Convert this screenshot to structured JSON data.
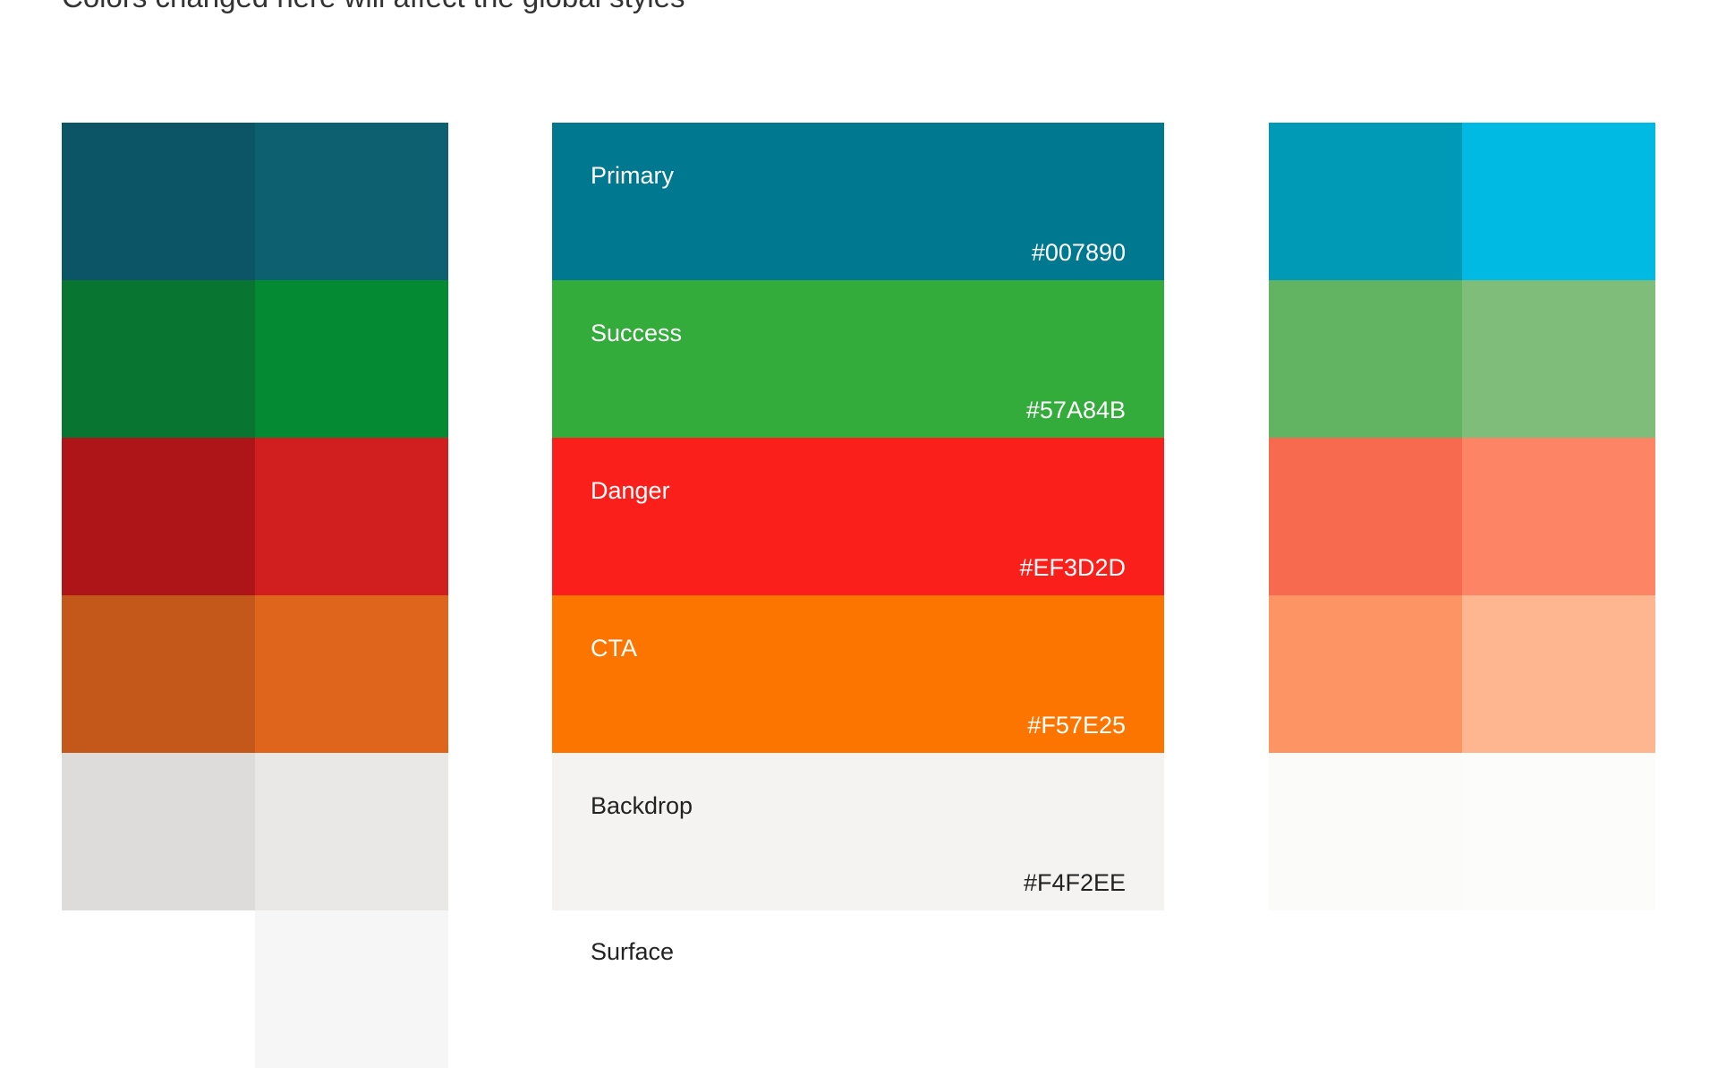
{
  "header": {
    "subtitle": "Colors changed here will affect the global styles"
  },
  "swatches": [
    {
      "label": "Primary",
      "hex": "#007890"
    },
    {
      "label": "Success",
      "hex": "#57A84B"
    },
    {
      "label": "Danger",
      "hex": "#EF3D2D"
    },
    {
      "label": "CTA",
      "hex": "#F57E25"
    },
    {
      "label": "Backdrop",
      "hex": "#F4F2EE"
    },
    {
      "label": "Surface"
    }
  ]
}
